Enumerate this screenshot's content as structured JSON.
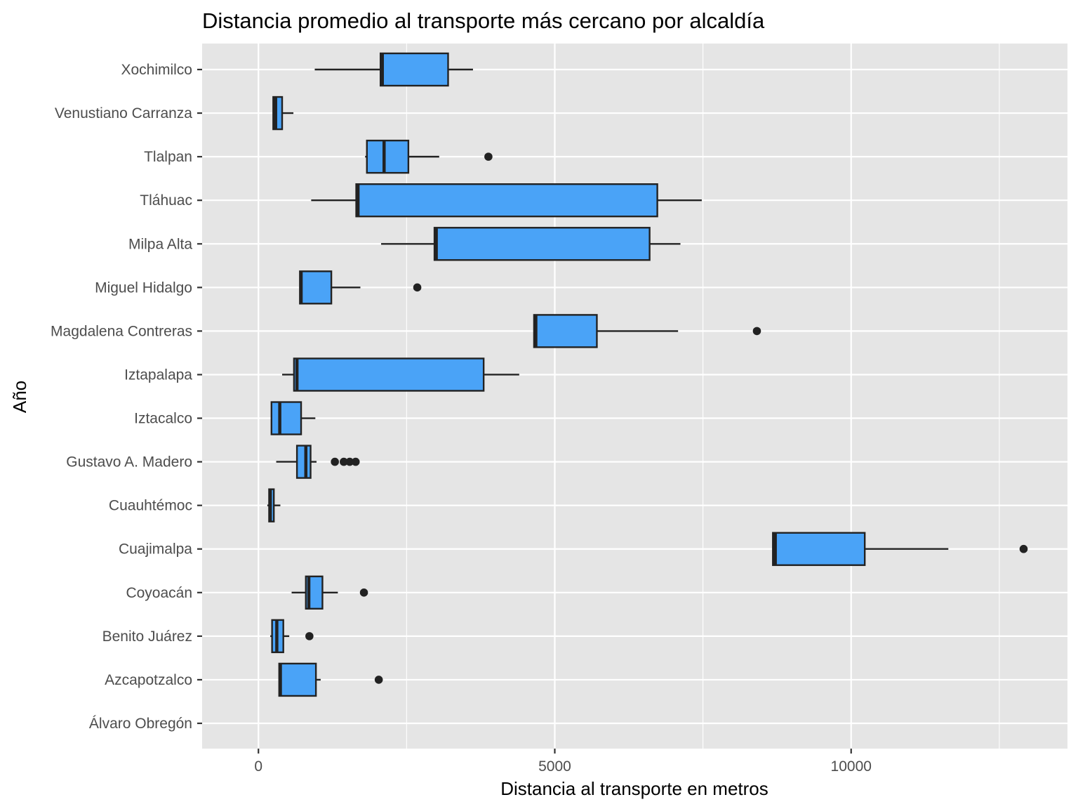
{
  "colors": {
    "panel_background": "#e5e5e5",
    "grid_major": "#ffffff",
    "box_fill": "#4aa3f7",
    "box_stroke": "#222222",
    "outlier": "#222222",
    "tick_text": "#4d4d4d"
  },
  "chart_data": {
    "type": "boxplot",
    "orientation": "horizontal",
    "title": "Distancia promedio al transporte más cercano por alcaldía",
    "xlabel": "Distancia al transporte en metros",
    "ylabel": "Año",
    "xlim": [
      -950,
      13650
    ],
    "x_ticks": [
      0,
      5000,
      10000
    ],
    "x_tick_labels": [
      "0",
      "5000",
      "10000"
    ],
    "grid": true,
    "legend": "none",
    "categories": [
      "Álvaro Obregón",
      "Azcapotzalco",
      "Benito Juárez",
      "Coyoacán",
      "Cuajimalpa",
      "Cuauhtémoc",
      "Gustavo A. Madero",
      "Iztacalco",
      "Iztapalapa",
      "Magdalena Contreras",
      "Miguel Hidalgo",
      "Milpa Alta",
      "Tláhuac",
      "Tlalpan",
      "Venustiano Carranza",
      "Xochimilco"
    ],
    "boxes": [
      {
        "category": "Álvaro Obregón",
        "min": null,
        "q1": null,
        "median": null,
        "q3": null,
        "max": null,
        "outliers": []
      },
      {
        "category": "Azcapotzalco",
        "min": 350,
        "q1": 350,
        "median": 370,
        "q3": 970,
        "max": 1050,
        "outliers": [
          2030
        ]
      },
      {
        "category": "Benito Juárez",
        "min": 200,
        "q1": 230,
        "median": 310,
        "q3": 420,
        "max": 520,
        "outliers": [
          860
        ]
      },
      {
        "category": "Coyoacán",
        "min": 560,
        "q1": 800,
        "median": 850,
        "q3": 1080,
        "max": 1340,
        "outliers": [
          1780
        ]
      },
      {
        "category": "Cuajimalpa",
        "min": 8680,
        "q1": 8680,
        "median": 8720,
        "q3": 10230,
        "max": 11640,
        "outliers": [
          12910
        ]
      },
      {
        "category": "Cuauhtémoc",
        "min": 150,
        "q1": 180,
        "median": 200,
        "q3": 260,
        "max": 370,
        "outliers": []
      },
      {
        "category": "Gustavo A. Madero",
        "min": 300,
        "q1": 650,
        "median": 800,
        "q3": 880,
        "max": 980,
        "outliers": [
          1290,
          1440,
          1540,
          1640
        ]
      },
      {
        "category": "Iztacalco",
        "min": 220,
        "q1": 220,
        "median": 360,
        "q3": 720,
        "max": 960,
        "outliers": []
      },
      {
        "category": "Iztapalapa",
        "min": 400,
        "q1": 600,
        "median": 650,
        "q3": 3800,
        "max": 4400,
        "outliers": []
      },
      {
        "category": "Magdalena Contreras",
        "min": 4650,
        "q1": 4650,
        "median": 4680,
        "q3": 5710,
        "max": 7080,
        "outliers": [
          8410
        ]
      },
      {
        "category": "Miguel Hidalgo",
        "min": 700,
        "q1": 700,
        "median": 720,
        "q3": 1230,
        "max": 1720,
        "outliers": [
          2680
        ]
      },
      {
        "category": "Milpa Alta",
        "min": 2070,
        "q1": 2970,
        "median": 3000,
        "q3": 6600,
        "max": 7120,
        "outliers": []
      },
      {
        "category": "Tláhuac",
        "min": 890,
        "q1": 1650,
        "median": 1680,
        "q3": 6730,
        "max": 7480,
        "outliers": []
      },
      {
        "category": "Tlalpan",
        "min": 1800,
        "q1": 1830,
        "median": 2120,
        "q3": 2530,
        "max": 3050,
        "outliers": [
          3880
        ]
      },
      {
        "category": "Venustiano Carranza",
        "min": 250,
        "q1": 250,
        "median": 290,
        "q3": 400,
        "max": 590,
        "outliers": []
      },
      {
        "category": "Xochimilco",
        "min": 950,
        "q1": 2060,
        "median": 2090,
        "q3": 3200,
        "max": 3620,
        "outliers": []
      }
    ]
  }
}
